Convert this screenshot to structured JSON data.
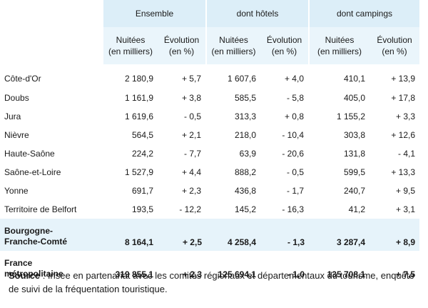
{
  "groups": [
    "Ensemble",
    "dont hôtels",
    "dont campings"
  ],
  "subheaders": {
    "nuitees_line1": "Nuitées",
    "nuitees_line2": "(en milliers)",
    "evolution_line1": "Évolution",
    "evolution_line2": "(en %)"
  },
  "rows": [
    {
      "label": "Côte-d'Or",
      "values": [
        "2 180,9",
        "+ 5,7",
        "1 607,6",
        "+ 4,0",
        "410,1",
        "+ 13,9"
      ]
    },
    {
      "label": "Doubs",
      "values": [
        "1 161,9",
        "+ 3,8",
        "585,5",
        "- 5,8",
        "405,0",
        "+ 17,8"
      ]
    },
    {
      "label": "Jura",
      "values": [
        "1 619,6",
        "- 0,5",
        "313,3",
        "+ 0,8",
        "1 155,2",
        "+ 3,3"
      ]
    },
    {
      "label": "Nièvre",
      "values": [
        "564,5",
        "+ 2,1",
        "218,0",
        "- 10,4",
        "303,8",
        "+ 12,6"
      ]
    },
    {
      "label": "Haute-Saône",
      "values": [
        "224,2",
        "- 7,7",
        "63,9",
        "- 20,6",
        "131,8",
        "- 4,1"
      ]
    },
    {
      "label": "Saône-et-Loire",
      "values": [
        "1 527,9",
        "+ 4,4",
        "888,2",
        "- 0,5",
        "599,5",
        "+ 13,3"
      ]
    },
    {
      "label": "Yonne",
      "values": [
        "691,7",
        "+ 2,3",
        "436,8",
        "- 1,7",
        "240,7",
        "+ 9,5"
      ]
    },
    {
      "label": "Territoire de Belfort",
      "values": [
        "193,5",
        "- 12,2",
        "145,2",
        "- 16,3",
        "41,2",
        "+ 3,1"
      ]
    }
  ],
  "total_region": {
    "label_line1": "Bourgogne-",
    "label_line2": "Franche-Comté",
    "values": [
      "8 164,1",
      "+ 2,5",
      "4 258,4",
      "- 1,3",
      "3 287,4",
      "+ 8,9"
    ]
  },
  "total_france": {
    "label_line1": "France",
    "label_line2": "métropolitaine",
    "values": [
      "319 855,1",
      "+ 2,3",
      "125 694,1",
      "- 1,0",
      "135 708,1",
      "+ 7,5"
    ]
  },
  "source": {
    "label": "Source",
    "text": " : Insee en partenariat avec les comités régionaux et départementaux du tourisme, enquête de suivi de la fréquentation touristique."
  },
  "colors": {
    "header_bg": "#dceef8",
    "subheader_bg": "#eaf5fb",
    "highlight_row_bg": "#e6f3fa"
  }
}
